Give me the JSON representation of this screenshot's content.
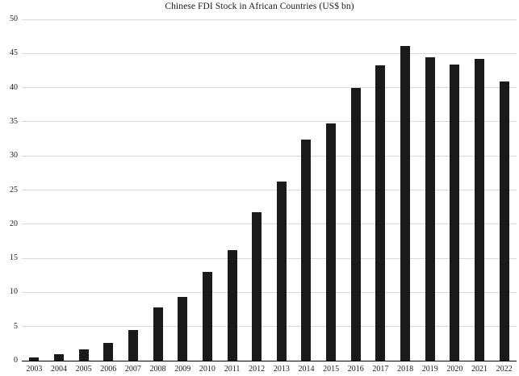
{
  "chart_data": {
    "type": "bar",
    "title": "Chinese FDI Stock in African Countries (US$ bn)",
    "categories": [
      "2003",
      "2004",
      "2005",
      "2006",
      "2007",
      "2008",
      "2009",
      "2010",
      "2011",
      "2012",
      "2013",
      "2014",
      "2015",
      "2016",
      "2017",
      "2018",
      "2019",
      "2020",
      "2021",
      "2022"
    ],
    "values": [
      0.5,
      0.9,
      1.6,
      2.6,
      4.5,
      7.8,
      9.3,
      13.0,
      16.2,
      21.7,
      26.2,
      32.4,
      34.7,
      39.9,
      43.3,
      46.1,
      44.4,
      43.4,
      44.2,
      40.9
    ],
    "xlabel": "",
    "ylabel": "",
    "ylim": [
      0,
      50
    ],
    "ytick_interval": 5,
    "yticks": [
      0,
      5,
      10,
      15,
      20,
      25,
      30,
      35,
      40,
      45,
      50
    ],
    "grid": true,
    "legend": false,
    "bar_color": "#1a1a1a",
    "gridline_color": "#d9d9d9",
    "axis_color": "#000000",
    "background_color": "#ffffff"
  }
}
